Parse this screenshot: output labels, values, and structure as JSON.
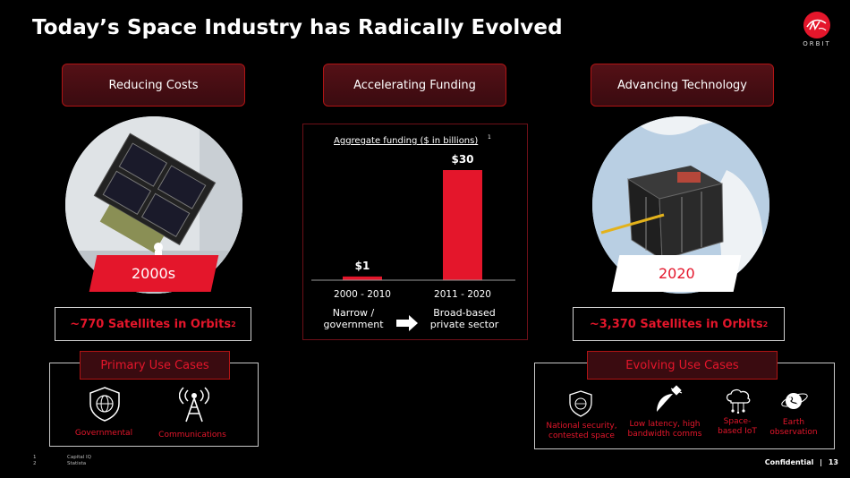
{
  "title": "Today’s Space Industry has Radically Evolved",
  "logo": {
    "word": "ORBIT",
    "icon": "virgin-logo"
  },
  "pillars": [
    {
      "label": "Reducing Costs"
    },
    {
      "label": "Accelerating Funding"
    },
    {
      "label": "Advancing Technology"
    }
  ],
  "left": {
    "era": "2000s",
    "satellites": "~770 Satellites in Orbits",
    "satellites_footnote": "2",
    "use_title": "Primary Use Cases",
    "uses": [
      {
        "label": "Governmental",
        "icon": "shield-globe-icon"
      },
      {
        "label": "Communications",
        "icon": "antenna-tower-icon"
      }
    ]
  },
  "right": {
    "era": "2020",
    "satellites": "~3,370 Satellites in Orbits",
    "satellites_footnote": "2",
    "use_title": "Evolving Use Cases",
    "uses": [
      {
        "label": "National security, contested space",
        "icon": "shield-globe-icon"
      },
      {
        "label": "Low latency, high bandwidth comms",
        "icon": "satellite-dish-icon"
      },
      {
        "label": "Space-based IoT",
        "icon": "cloud-network-icon"
      },
      {
        "label": "Earth observation",
        "icon": "earth-orbit-icon"
      }
    ]
  },
  "chart_data": {
    "type": "bar",
    "title": "Aggregate funding ($ in billions)",
    "title_footnote": "1",
    "categories": [
      "2000 - 2010",
      "2011 - 2020"
    ],
    "values": [
      1,
      30
    ],
    "data_labels": [
      "$1",
      "$30"
    ],
    "ylim": [
      0,
      30
    ],
    "bar_color": "#e4162b",
    "xlabel": "",
    "ylabel": "",
    "grid": false
  },
  "transition": {
    "from": "Narrow / government",
    "to": "Broad-based private sector",
    "icon": "arrow-right-icon"
  },
  "footnotes": [
    {
      "num": "1",
      "text": "Capital IQ"
    },
    {
      "num": "2",
      "text": "Statista"
    }
  ],
  "footer": {
    "confidential": "Confidential",
    "separator": "|",
    "page": "13"
  },
  "colors": {
    "accent": "#e4162b",
    "dark_red": "#3a0b10",
    "background": "#000000"
  }
}
